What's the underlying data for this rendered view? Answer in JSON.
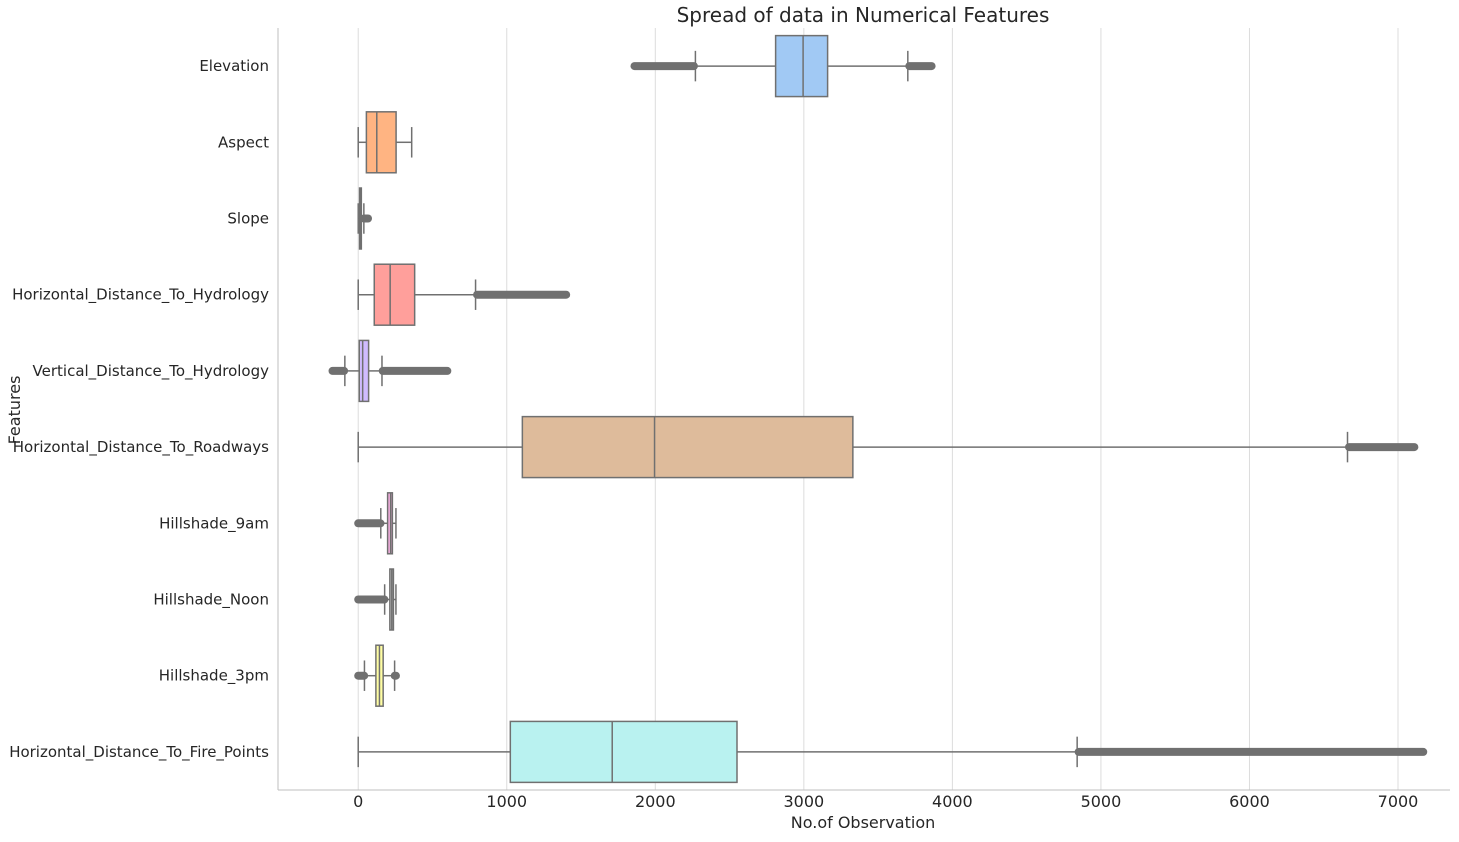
{
  "chart_data": {
    "type": "boxplot",
    "orientation": "horizontal",
    "title": "Spread of data in Numerical Features",
    "xlabel": "No.of Observation",
    "ylabel": "Features",
    "xlim": [
      -540,
      7350
    ],
    "xticks": [
      0,
      1000,
      2000,
      3000,
      4000,
      5000,
      6000,
      7000
    ],
    "grid": "vertical",
    "legend": "none",
    "whisker_color": "#707070",
    "series": [
      {
        "name": "Elevation",
        "color": "#a1c9f4",
        "whisker_low": 2270,
        "q1": 2810,
        "median": 2995,
        "q3": 3160,
        "whisker_high": 3700,
        "outliers_low": [
          1860,
          2260
        ],
        "outliers_high": [
          3710,
          3860
        ]
      },
      {
        "name": "Aspect",
        "color": "#ffb482",
        "whisker_low": 0,
        "q1": 55,
        "median": 125,
        "q3": 255,
        "whisker_high": 360,
        "outliers_low": null,
        "outliers_high": null
      },
      {
        "name": "Slope",
        "color": "#8de5a1",
        "whisker_low": 0,
        "q1": 9,
        "median": 14,
        "q3": 21,
        "whisker_high": 38,
        "outliers_low": null,
        "outliers_high": [
          39,
          66
        ]
      },
      {
        "name": "Horizontal_Distance_To_Hydrology",
        "color": "#ff9f9b",
        "whisker_low": 0,
        "q1": 108,
        "median": 215,
        "q3": 380,
        "whisker_high": 790,
        "outliers_low": null,
        "outliers_high": [
          800,
          1400
        ]
      },
      {
        "name": "Vertical_Distance_To_Hydrology",
        "color": "#d0bbff",
        "whisker_low": -90,
        "q1": 7,
        "median": 30,
        "q3": 70,
        "whisker_high": 160,
        "outliers_low": [
          -173,
          -95
        ],
        "outliers_high": [
          165,
          600
        ]
      },
      {
        "name": "Horizontal_Distance_To_Roadways",
        "color": "#debb9b",
        "whisker_low": 0,
        "q1": 1105,
        "median": 1995,
        "q3": 3330,
        "whisker_high": 6660,
        "outliers_low": null,
        "outliers_high": [
          6670,
          7110
        ]
      },
      {
        "name": "Hillshade_9am",
        "color": "#fab0e4",
        "whisker_low": 152,
        "q1": 198,
        "median": 218,
        "q3": 230,
        "whisker_high": 254,
        "outliers_low": [
          0,
          150
        ],
        "outliers_high": null
      },
      {
        "name": "Hillshade_Noon",
        "color": "#cfcfcf",
        "whisker_low": 178,
        "q1": 213,
        "median": 226,
        "q3": 237,
        "whisker_high": 254,
        "outliers_low": [
          0,
          176
        ],
        "outliers_high": null
      },
      {
        "name": "Hillshade_3pm",
        "color": "#fffea3",
        "whisker_low": 42,
        "q1": 119,
        "median": 143,
        "q3": 168,
        "whisker_high": 245,
        "outliers_low": [
          0,
          40
        ],
        "outliers_high": [
          246,
          254
        ]
      },
      {
        "name": "Horizontal_Distance_To_Fire_Points",
        "color": "#b9f2f0",
        "whisker_low": 0,
        "q1": 1024,
        "median": 1710,
        "q3": 2550,
        "whisker_high": 4840,
        "outliers_low": null,
        "outliers_high": [
          4850,
          7170
        ]
      }
    ]
  }
}
